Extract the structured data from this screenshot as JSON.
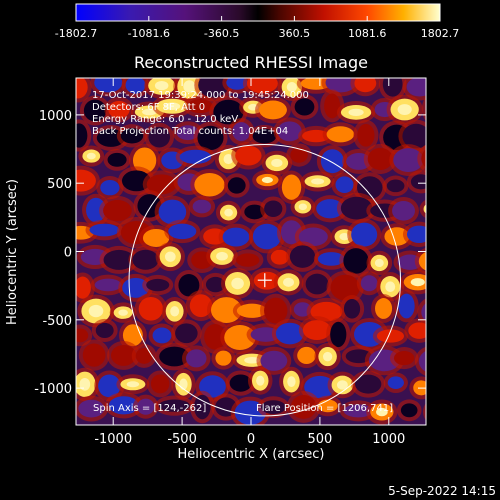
{
  "chart_data": {
    "type": "heatmap",
    "title": "Reconstructed RHESSI Image",
    "xlabel": "Heliocentric X (arcsec)",
    "ylabel": "Heliocentric Y (arcsec)",
    "xlim": [
      -1270,
      1270
    ],
    "ylim": [
      -1270,
      1270
    ],
    "xticks": [
      -1000,
      -500,
      0,
      500,
      1000
    ],
    "xtick_labels": [
      "-1000",
      "-500",
      "0",
      "500",
      "1000"
    ],
    "yticks": [
      -1000,
      -500,
      0,
      500,
      1000
    ],
    "ytick_labels": [
      "-1000",
      "-500",
      "0",
      "500",
      "1000"
    ],
    "colorbar": {
      "min": -1802.7,
      "max": 1802.7,
      "tick_values": [
        -1802.7,
        -1081.6,
        -360.5,
        360.5,
        1081.6,
        1802.7
      ],
      "tick_labels": [
        "-1802.7",
        "-1081.6",
        "-360.5",
        "360.5",
        "1081.6",
        "1802.7"
      ]
    },
    "annotations": [
      "17-Oct-2017 19:39:24.000 to 19:45:24.000",
      "Detectors: 6F 8F, Att 0",
      "Energy Range: 6.0 - 12.0 keV",
      "Back Projection   Total counts: 1.04E+04"
    ],
    "footer_left": "Spin Axis = [124,-262]",
    "footer_right": "Flare Position = [1206,741]",
    "solar_limb_radius": 985,
    "sun_center_marker": [
      100,
      -210
    ],
    "grid": false
  },
  "timestamp": "5-Sep-2022 14:15"
}
